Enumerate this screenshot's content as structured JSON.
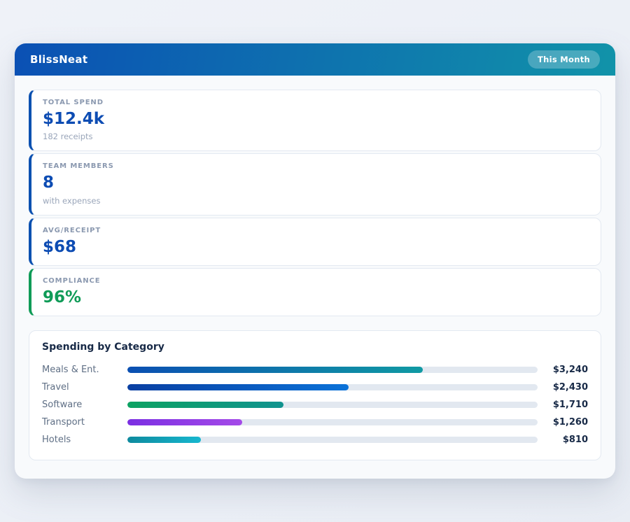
{
  "header": {
    "app_name": "BlissNeat",
    "period_badge": "This Month",
    "gradient": [
      "#0b50b4",
      "#1193a9"
    ]
  },
  "stats": [
    {
      "label": "TOTAL SPEND",
      "value": "$12.4k",
      "sub": "182 receipts",
      "accent": "#0c51b0",
      "value_color": "#0d4cb3"
    },
    {
      "label": "TEAM MEMBERS",
      "value": "8",
      "sub": "with expenses",
      "accent": "#0c51b0",
      "value_color": "#0d4cb3"
    },
    {
      "label": "AVG/RECEIPT",
      "value": "$68",
      "sub": "",
      "accent": "#0c51b0",
      "value_color": "#0d4cb3"
    },
    {
      "label": "COMPLIANCE",
      "value": "96%",
      "sub": "",
      "accent": "#0f9b57",
      "value_color": "#0f9b57"
    }
  ],
  "chart_data": {
    "type": "bar",
    "orientation": "horizontal",
    "title": "Spending by Category",
    "categories": [
      "Meals & Ent.",
      "Travel",
      "Software",
      "Transport",
      "Hotels"
    ],
    "values": [
      3240,
      2430,
      1710,
      1260,
      810
    ],
    "value_labels": [
      "$3,240",
      "$2,430",
      "$1,710",
      "$1,260",
      "$810"
    ],
    "xlim": [
      0,
      4500
    ],
    "grid": false,
    "legend": "none",
    "track_color": "#e2e8f0",
    "bar_gradients": [
      [
        "#0b4fb2",
        "#109aa3"
      ],
      [
        "#0a3fa2",
        "#0b72d8"
      ],
      [
        "#0da262",
        "#11938f"
      ],
      [
        "#7b2fe2",
        "#a44ae8"
      ],
      [
        "#0e8a9e",
        "#17b7cf"
      ]
    ]
  }
}
